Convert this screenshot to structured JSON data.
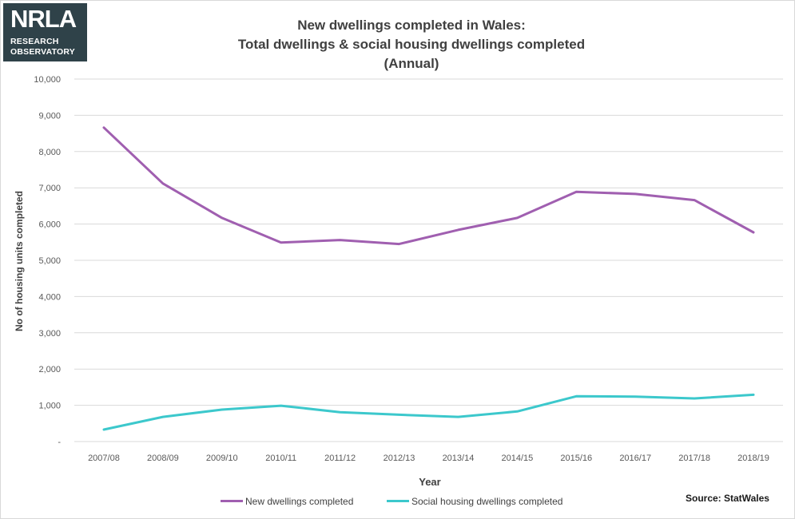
{
  "logo": {
    "mark": "NRLA",
    "line1": "RESEARCH",
    "line2": "OBSERVATORY"
  },
  "source": "Source: StatWales",
  "colors": {
    "series_new": "#a05fb0",
    "series_social": "#3cc8cc",
    "gridline": "#d9d9d9",
    "logo_bg": "#2f4249",
    "logo_accent": "#b2d234"
  },
  "chart_data": {
    "type": "line",
    "title_lines": [
      "New dwellings completed in Wales:",
      "Total dwellings & social housing dwellings completed",
      "(Annual)"
    ],
    "xlabel": "Year",
    "ylabel": "No of housing units completed",
    "ylim": [
      0,
      10000
    ],
    "yticks": [
      0,
      1000,
      2000,
      3000,
      4000,
      5000,
      6000,
      7000,
      8000,
      9000,
      10000
    ],
    "ytick_labels": [
      "-",
      "1,000",
      "2,000",
      "3,000",
      "4,000",
      "5,000",
      "6,000",
      "7,000",
      "8,000",
      "9,000",
      "10,000"
    ],
    "grid": true,
    "legend_position": "bottom",
    "categories": [
      "2007/08",
      "2008/09",
      "2009/10",
      "2010/11",
      "2011/12",
      "2012/13",
      "2013/14",
      "2014/15",
      "2015/16",
      "2016/17",
      "2017/18",
      "2018/19"
    ],
    "series": [
      {
        "name": "New dwellings completed",
        "color": "#a05fb0",
        "values": [
          8660,
          7120,
          6170,
          5490,
          5560,
          5450,
          5840,
          6170,
          6890,
          6830,
          6660,
          5770
        ]
      },
      {
        "name": "Social housing dwellings completed",
        "color": "#3cc8cc",
        "values": [
          330,
          680,
          880,
          990,
          810,
          740,
          680,
          830,
          1250,
          1240,
          1190,
          1290
        ]
      }
    ]
  }
}
